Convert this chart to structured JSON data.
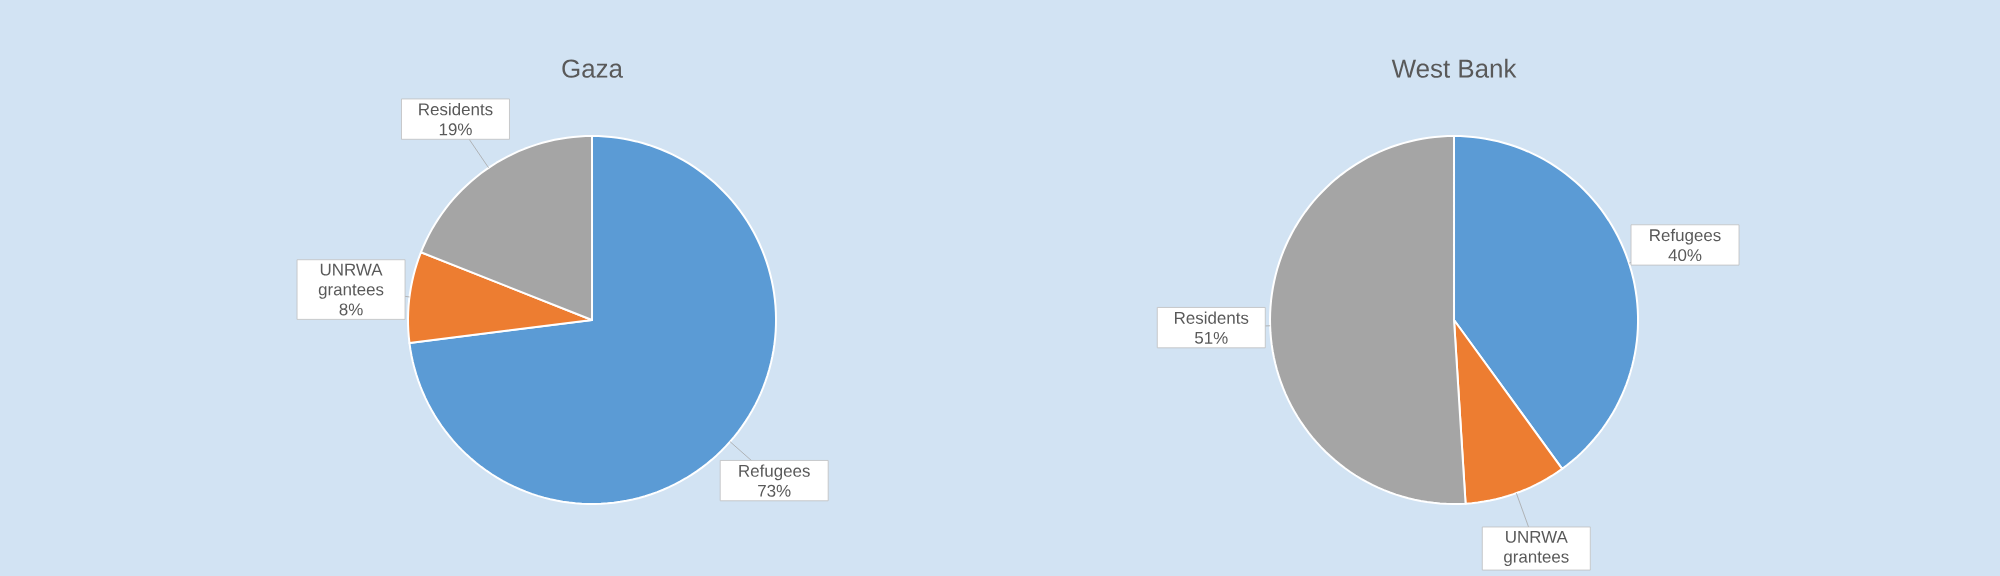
{
  "chart_data": [
    {
      "type": "pie",
      "title": "Gaza",
      "categories": [
        "Refugees",
        "UNRWA grantees",
        "Residents"
      ],
      "values": [
        73,
        8,
        19
      ],
      "colors": [
        "#5b9bd5",
        "#ed7d31",
        "#a5a5a5"
      ],
      "value_labels": [
        "73%",
        "8%",
        "19%"
      ]
    },
    {
      "type": "pie",
      "title": "West Bank",
      "categories": [
        "Refugees",
        "UNRWA grantees",
        "Residents"
      ],
      "values": [
        40,
        9,
        51
      ],
      "colors": [
        "#5b9bd5",
        "#ed7d31",
        "#a5a5a5"
      ],
      "value_labels": [
        "40%",
        null,
        "51%"
      ]
    }
  ]
}
